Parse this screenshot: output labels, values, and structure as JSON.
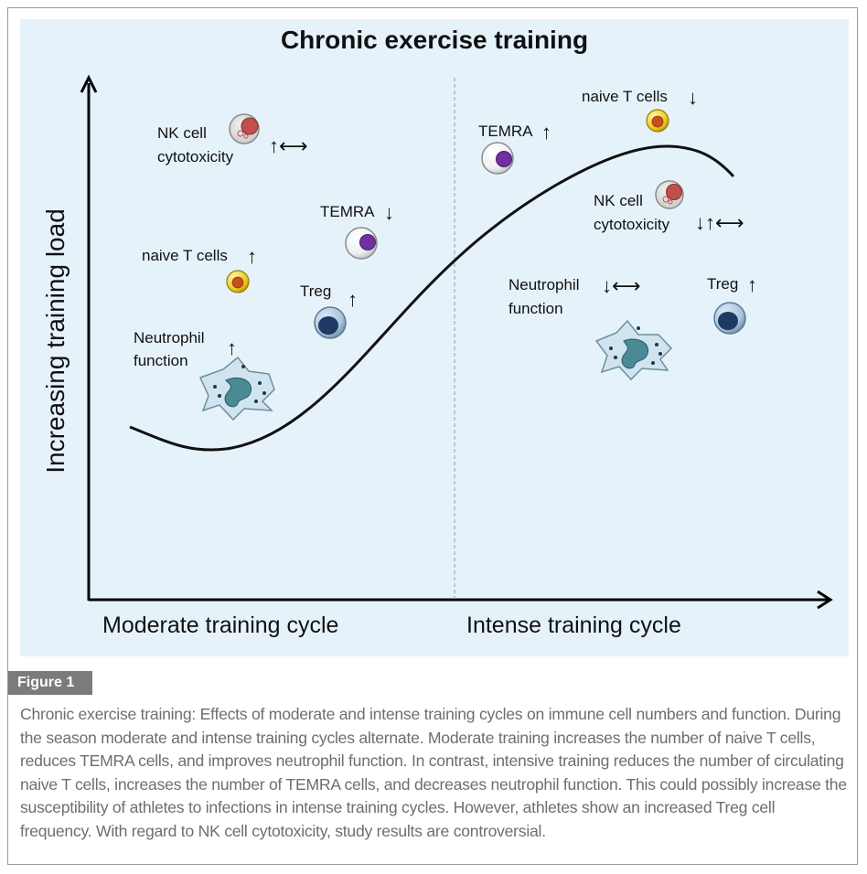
{
  "title": "Chronic exercise training",
  "y_axis_label": "Increasing training load",
  "x_axis_labels": {
    "left": "Moderate training cycle",
    "right": "Intense training cycle"
  },
  "moderate": {
    "nk_cell_line1": "NK cell",
    "nk_cell_line2": "cytotoxicity",
    "nk_cell_arrows": "↑⟷",
    "temra": "TEMRA",
    "temra_arrow": "↓",
    "naive_t": "naive T cells",
    "naive_t_arrow": "↑",
    "treg": "Treg",
    "treg_arrow": "↑",
    "neutrophil_line1": "Neutrophil",
    "neutrophil_line2": "function",
    "neutrophil_arrow": "↑"
  },
  "intense": {
    "temra": "TEMRA",
    "temra_arrow": "↑",
    "naive_t": "naive T cells",
    "naive_t_arrow": "↓",
    "nk_cell_line1": "NK cell",
    "nk_cell_line2": "cytotoxicity",
    "nk_cell_arrows": "↓↑⟷",
    "neutrophil_line1": "Neutrophil",
    "neutrophil_line2": "function",
    "neutrophil_arrows": "↓⟷",
    "treg": "Treg",
    "treg_arrow": "↑"
  },
  "figure_label": "Figure 1",
  "caption": "Chronic exercise training: Effects of moderate and intense training cycles on immune cell numbers and function. During the season moderate and intense training cycles alternate. Moderate training increases the number of naive T cells, reduces TEMRA cells, and improves neutrophil function. In contrast, intensive training reduces the number of circulating naive T cells, increases the number of TEMRA cells, and decreases neutrophil function. This could possibly increase the susceptibility of athletes to infections in intense training cycles. However, athletes show an increased Treg cell frequency. With regard to NK cell cytotoxicity, study results are controversial.",
  "colors": {
    "background": "#e6f2fa",
    "nk_cell": "#c0504d",
    "temra": "#7030a0",
    "naive_t": "#d4a800",
    "treg": "#1f3864",
    "neutrophil": "#4a8a95",
    "badge": "#7b7b7b",
    "caption_text": "#6e6e6e"
  }
}
